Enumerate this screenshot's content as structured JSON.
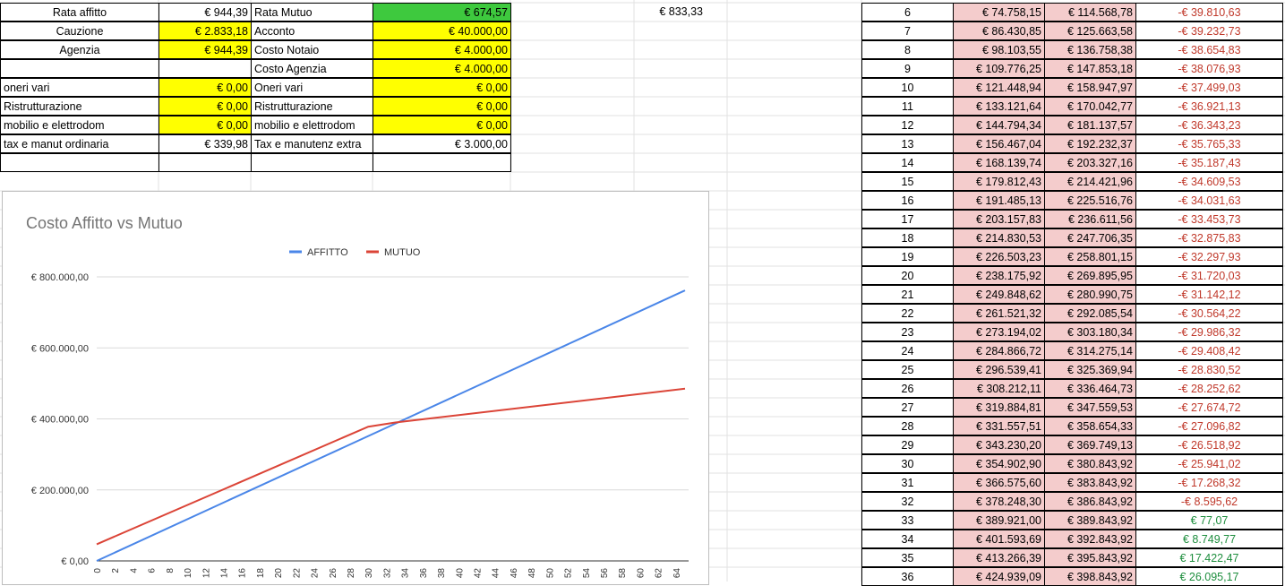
{
  "left_table": {
    "rows": [
      {
        "label_a": "Rata affitto",
        "val_a": "€ 944,39",
        "label_b": "Rata Mutuo",
        "val_b": "€ 674,57",
        "extra": "€ 833,33"
      },
      {
        "label_a": "Cauzione",
        "val_a": "€ 2.833,18",
        "label_b": "Acconto",
        "val_b": "€ 40.000,00"
      },
      {
        "label_a": "Agenzia",
        "val_a": "€ 944,39",
        "label_b": "Costo Notaio",
        "val_b": "€ 4.000,00"
      },
      {
        "label_a": "",
        "val_a": "",
        "label_b": "Costo Agenzia",
        "val_b": "€ 4.000,00"
      },
      {
        "label_a": "oneri vari",
        "val_a": "€ 0,00",
        "label_b": "Oneri vari",
        "val_b": "€ 0,00"
      },
      {
        "label_a": "Ristrutturazione",
        "val_a": "€ 0,00",
        "label_b": "Ristrutturazione",
        "val_b": "€ 0,00"
      },
      {
        "label_a": "mobilio e elettrodom",
        "val_a": "€ 0,00",
        "label_b": "mobilio e elettrodom",
        "val_b": "€ 0,00"
      },
      {
        "label_a": "tax e manut ordinaria",
        "val_a": "€ 339,98",
        "label_b": "Tax e manutenz extra",
        "val_b": "€ 3.000,00"
      }
    ]
  },
  "colors": {
    "yellow": "#ffff00",
    "green": "#3ec93e",
    "pink": "#f4cccc",
    "series_affitto": "#4a86e8",
    "series_mutuo": "#db4437",
    "negative": "#c0392b",
    "positive": "#1e8e3e"
  },
  "chart_data": {
    "type": "line",
    "title": "Costo Affitto vs Mutuo",
    "legend_position": "top",
    "x_ticks": [
      "0",
      "2",
      "4",
      "6",
      "8",
      "10",
      "12",
      "14",
      "16",
      "18",
      "20",
      "22",
      "24",
      "26",
      "28",
      "30",
      "32",
      "34",
      "36",
      "38",
      "40",
      "42",
      "44",
      "46",
      "48",
      "50",
      "52",
      "54",
      "56",
      "58",
      "60",
      "62",
      "64"
    ],
    "y_ticks": [
      "€ 0,00",
      "€ 200.000,00",
      "€ 400.000,00",
      "€ 600.000,00",
      "€ 800.000,00"
    ],
    "ylim": [
      0,
      800000
    ],
    "xlim": [
      0,
      65
    ],
    "grid": true,
    "series": [
      {
        "name": "AFFITTO",
        "x": [
          0,
          65
        ],
        "values": [
          0,
          762000
        ]
      },
      {
        "name": "MUTUO",
        "x": [
          0,
          30,
          33,
          65
        ],
        "values": [
          47000,
          378000,
          389843,
          485000
        ]
      }
    ]
  },
  "right_table": {
    "rows": [
      {
        "n": "6",
        "a": "€ 74.758,15",
        "b": "€ 114.568,78",
        "d": "-€ 39.810,63",
        "s": "neg"
      },
      {
        "n": "7",
        "a": "€ 86.430,85",
        "b": "€ 125.663,58",
        "d": "-€ 39.232,73",
        "s": "neg"
      },
      {
        "n": "8",
        "a": "€ 98.103,55",
        "b": "€ 136.758,38",
        "d": "-€ 38.654,83",
        "s": "neg"
      },
      {
        "n": "9",
        "a": "€ 109.776,25",
        "b": "€ 147.853,18",
        "d": "-€ 38.076,93",
        "s": "neg"
      },
      {
        "n": "10",
        "a": "€ 121.448,94",
        "b": "€ 158.947,97",
        "d": "-€ 37.499,03",
        "s": "neg"
      },
      {
        "n": "11",
        "a": "€ 133.121,64",
        "b": "€ 170.042,77",
        "d": "-€ 36.921,13",
        "s": "neg"
      },
      {
        "n": "12",
        "a": "€ 144.794,34",
        "b": "€ 181.137,57",
        "d": "-€ 36.343,23",
        "s": "neg"
      },
      {
        "n": "13",
        "a": "€ 156.467,04",
        "b": "€ 192.232,37",
        "d": "-€ 35.765,33",
        "s": "neg"
      },
      {
        "n": "14",
        "a": "€ 168.139,74",
        "b": "€ 203.327,16",
        "d": "-€ 35.187,43",
        "s": "neg"
      },
      {
        "n": "15",
        "a": "€ 179.812,43",
        "b": "€ 214.421,96",
        "d": "-€ 34.609,53",
        "s": "neg"
      },
      {
        "n": "16",
        "a": "€ 191.485,13",
        "b": "€ 225.516,76",
        "d": "-€ 34.031,63",
        "s": "neg"
      },
      {
        "n": "17",
        "a": "€ 203.157,83",
        "b": "€ 236.611,56",
        "d": "-€ 33.453,73",
        "s": "neg"
      },
      {
        "n": "18",
        "a": "€ 214.830,53",
        "b": "€ 247.706,35",
        "d": "-€ 32.875,83",
        "s": "neg"
      },
      {
        "n": "19",
        "a": "€ 226.503,23",
        "b": "€ 258.801,15",
        "d": "-€ 32.297,93",
        "s": "neg"
      },
      {
        "n": "20",
        "a": "€ 238.175,92",
        "b": "€ 269.895,95",
        "d": "-€ 31.720,03",
        "s": "neg"
      },
      {
        "n": "21",
        "a": "€ 249.848,62",
        "b": "€ 280.990,75",
        "d": "-€ 31.142,12",
        "s": "neg"
      },
      {
        "n": "22",
        "a": "€ 261.521,32",
        "b": "€ 292.085,54",
        "d": "-€ 30.564,22",
        "s": "neg"
      },
      {
        "n": "23",
        "a": "€ 273.194,02",
        "b": "€ 303.180,34",
        "d": "-€ 29.986,32",
        "s": "neg"
      },
      {
        "n": "24",
        "a": "€ 284.866,72",
        "b": "€ 314.275,14",
        "d": "-€ 29.408,42",
        "s": "neg"
      },
      {
        "n": "25",
        "a": "€ 296.539,41",
        "b": "€ 325.369,94",
        "d": "-€ 28.830,52",
        "s": "neg"
      },
      {
        "n": "26",
        "a": "€ 308.212,11",
        "b": "€ 336.464,73",
        "d": "-€ 28.252,62",
        "s": "neg"
      },
      {
        "n": "27",
        "a": "€ 319.884,81",
        "b": "€ 347.559,53",
        "d": "-€ 27.674,72",
        "s": "neg"
      },
      {
        "n": "28",
        "a": "€ 331.557,51",
        "b": "€ 358.654,33",
        "d": "-€ 27.096,82",
        "s": "neg"
      },
      {
        "n": "29",
        "a": "€ 343.230,20",
        "b": "€ 369.749,13",
        "d": "-€ 26.518,92",
        "s": "neg"
      },
      {
        "n": "30",
        "a": "€ 354.902,90",
        "b": "€ 380.843,92",
        "d": "-€ 25.941,02",
        "s": "neg"
      },
      {
        "n": "31",
        "a": "€ 366.575,60",
        "b": "€ 383.843,92",
        "d": "-€ 17.268,32",
        "s": "neg"
      },
      {
        "n": "32",
        "a": "€ 378.248,30",
        "b": "€ 386.843,92",
        "d": "-€ 8.595,62",
        "s": "neg"
      },
      {
        "n": "33",
        "a": "€ 389.921,00",
        "b": "€ 389.843,92",
        "d": "€ 77,07",
        "s": "pos"
      },
      {
        "n": "34",
        "a": "€ 401.593,69",
        "b": "€ 392.843,92",
        "d": "€ 8.749,77",
        "s": "pos"
      },
      {
        "n": "35",
        "a": "€ 413.266,39",
        "b": "€ 395.843,92",
        "d": "€ 17.422,47",
        "s": "pos"
      },
      {
        "n": "36",
        "a": "€ 424.939,09",
        "b": "€ 398.843,92",
        "d": "€ 26.095,17",
        "s": "pos"
      }
    ]
  }
}
